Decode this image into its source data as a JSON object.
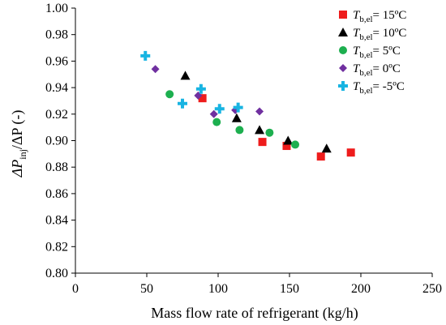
{
  "chart_data": {
    "type": "scatter",
    "xlabel": "Mass flow rate of refrigerant (kg/h)",
    "ylabel": {
      "delta1": "ΔP",
      "sub1": "inj",
      "rest": "/ΔP (-)"
    },
    "xlim": [
      0,
      250
    ],
    "ylim": [
      0.8,
      1.0
    ],
    "xticks": [
      "0",
      "50",
      "100",
      "150",
      "200",
      "250"
    ],
    "yticks": [
      "0.80",
      "0.82",
      "0.84",
      "0.86",
      "0.88",
      "0.90",
      "0.92",
      "0.94",
      "0.96",
      "0.98",
      "1.00"
    ],
    "grid": false,
    "legend_position": "top-right",
    "series": [
      {
        "name": "Tb,el = 15ºC",
        "label_T": "T",
        "label_sub": "b,el",
        "label_rest": "= 15ºC",
        "marker": "square",
        "color": "#ee1c1c",
        "points": [
          [
            89,
            0.932
          ],
          [
            131,
            0.899
          ],
          [
            148,
            0.896
          ],
          [
            172,
            0.888
          ],
          [
            193,
            0.891
          ]
        ]
      },
      {
        "name": "Tb,el = 10ºC",
        "label_T": "T",
        "label_sub": "b,el",
        "label_rest": "= 10ºC",
        "marker": "triangle",
        "color": "#000000",
        "points": [
          [
            77,
            0.949
          ],
          [
            113,
            0.917
          ],
          [
            129,
            0.908
          ],
          [
            149,
            0.9
          ],
          [
            176,
            0.894
          ]
        ]
      },
      {
        "name": "Tb,el = 5ºC",
        "label_T": "T",
        "label_sub": "b,el",
        "label_rest": "= 5ºC",
        "marker": "circle",
        "color": "#1daf4f",
        "points": [
          [
            66,
            0.935
          ],
          [
            99,
            0.914
          ],
          [
            115,
            0.908
          ],
          [
            136,
            0.906
          ],
          [
            154,
            0.897
          ]
        ]
      },
      {
        "name": "Tb,el = 0ºC",
        "label_T": "T",
        "label_sub": "b,el",
        "label_rest": "= 0ºC",
        "marker": "diamond",
        "color": "#7030a0",
        "points": [
          [
            56,
            0.954
          ],
          [
            86,
            0.934
          ],
          [
            97,
            0.92
          ],
          [
            112,
            0.923
          ],
          [
            129,
            0.922
          ]
        ]
      },
      {
        "name": "Tb,el = -5ºC",
        "label_T": "T",
        "label_sub": "b,el",
        "label_rest": "= -5ºC",
        "marker": "plus",
        "color": "#18b4e2",
        "points": [
          [
            49,
            0.964
          ],
          [
            75,
            0.928
          ],
          [
            88,
            0.939
          ],
          [
            101,
            0.924
          ],
          [
            114,
            0.925
          ]
        ]
      }
    ]
  }
}
